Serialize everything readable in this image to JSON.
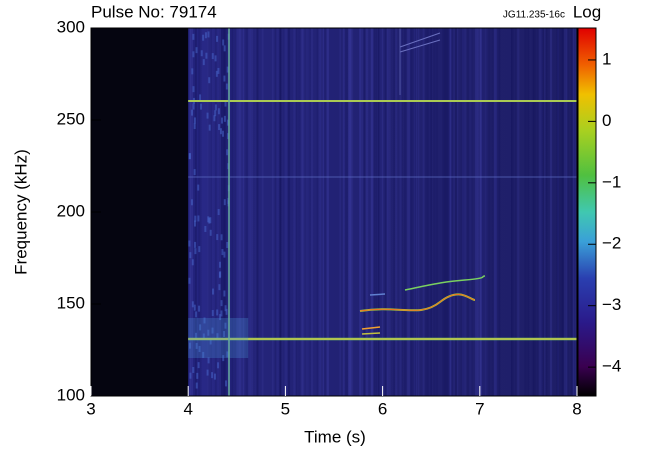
{
  "chart_data": {
    "type": "heatmap",
    "title": "Pulse No: 79174",
    "annotation": "JG11.235-16c",
    "x_label": "Time (s)",
    "y_label": "Frequency (kHz)",
    "xlim": [
      3,
      8
    ],
    "xticks": [
      3,
      4,
      5,
      6,
      7,
      8
    ],
    "ylim": [
      100,
      300
    ],
    "yticks": [
      100,
      150,
      200,
      250,
      300
    ],
    "colorbar": {
      "label": "Log",
      "lim": [
        -4.47,
        1.52
      ],
      "ticks": [
        1,
        0,
        {
          "value": -1,
          "label": "−1"
        },
        {
          "value": -2,
          "label": "−2"
        },
        {
          "value": -3,
          "label": "−3"
        },
        {
          "value": -4,
          "label": "−4"
        }
      ]
    }
  }
}
